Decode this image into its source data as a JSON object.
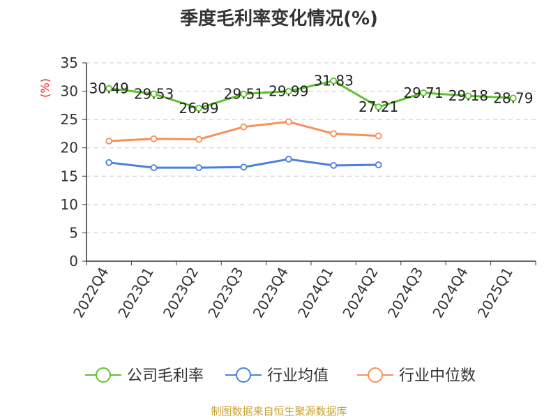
{
  "chart_data": {
    "type": "line",
    "title": "季度毛利率变化情况(%)",
    "ylabel": "(%)",
    "xlabel": "",
    "ylim": [
      0,
      35
    ],
    "yticks": [
      0,
      5,
      10,
      15,
      20,
      25,
      30,
      35
    ],
    "grid": true,
    "legend_position": "bottom",
    "categories": [
      "2022Q4",
      "2023Q1",
      "2023Q2",
      "2023Q3",
      "2023Q4",
      "2024Q1",
      "2024Q2",
      "2024Q3",
      "2024Q4",
      "2025Q1"
    ],
    "series": [
      {
        "name": "公司毛利率",
        "color": "#5cc22a",
        "labels": true,
        "values": [
          30.49,
          29.53,
          26.99,
          29.51,
          29.99,
          31.83,
          27.21,
          29.71,
          29.18,
          28.79
        ]
      },
      {
        "name": "行业均值",
        "color": "#4a7fe0",
        "labels": false,
        "values": [
          17.4,
          16.5,
          16.5,
          16.6,
          18.0,
          16.9,
          17.0,
          null,
          null,
          null
        ]
      },
      {
        "name": "行业中位数",
        "color": "#f5905a",
        "labels": false,
        "values": [
          21.2,
          21.6,
          21.5,
          23.7,
          24.6,
          22.5,
          22.1,
          null,
          null,
          null
        ]
      }
    ]
  },
  "footer": {
    "source": "制图数据来自恒生聚源数据库"
  }
}
